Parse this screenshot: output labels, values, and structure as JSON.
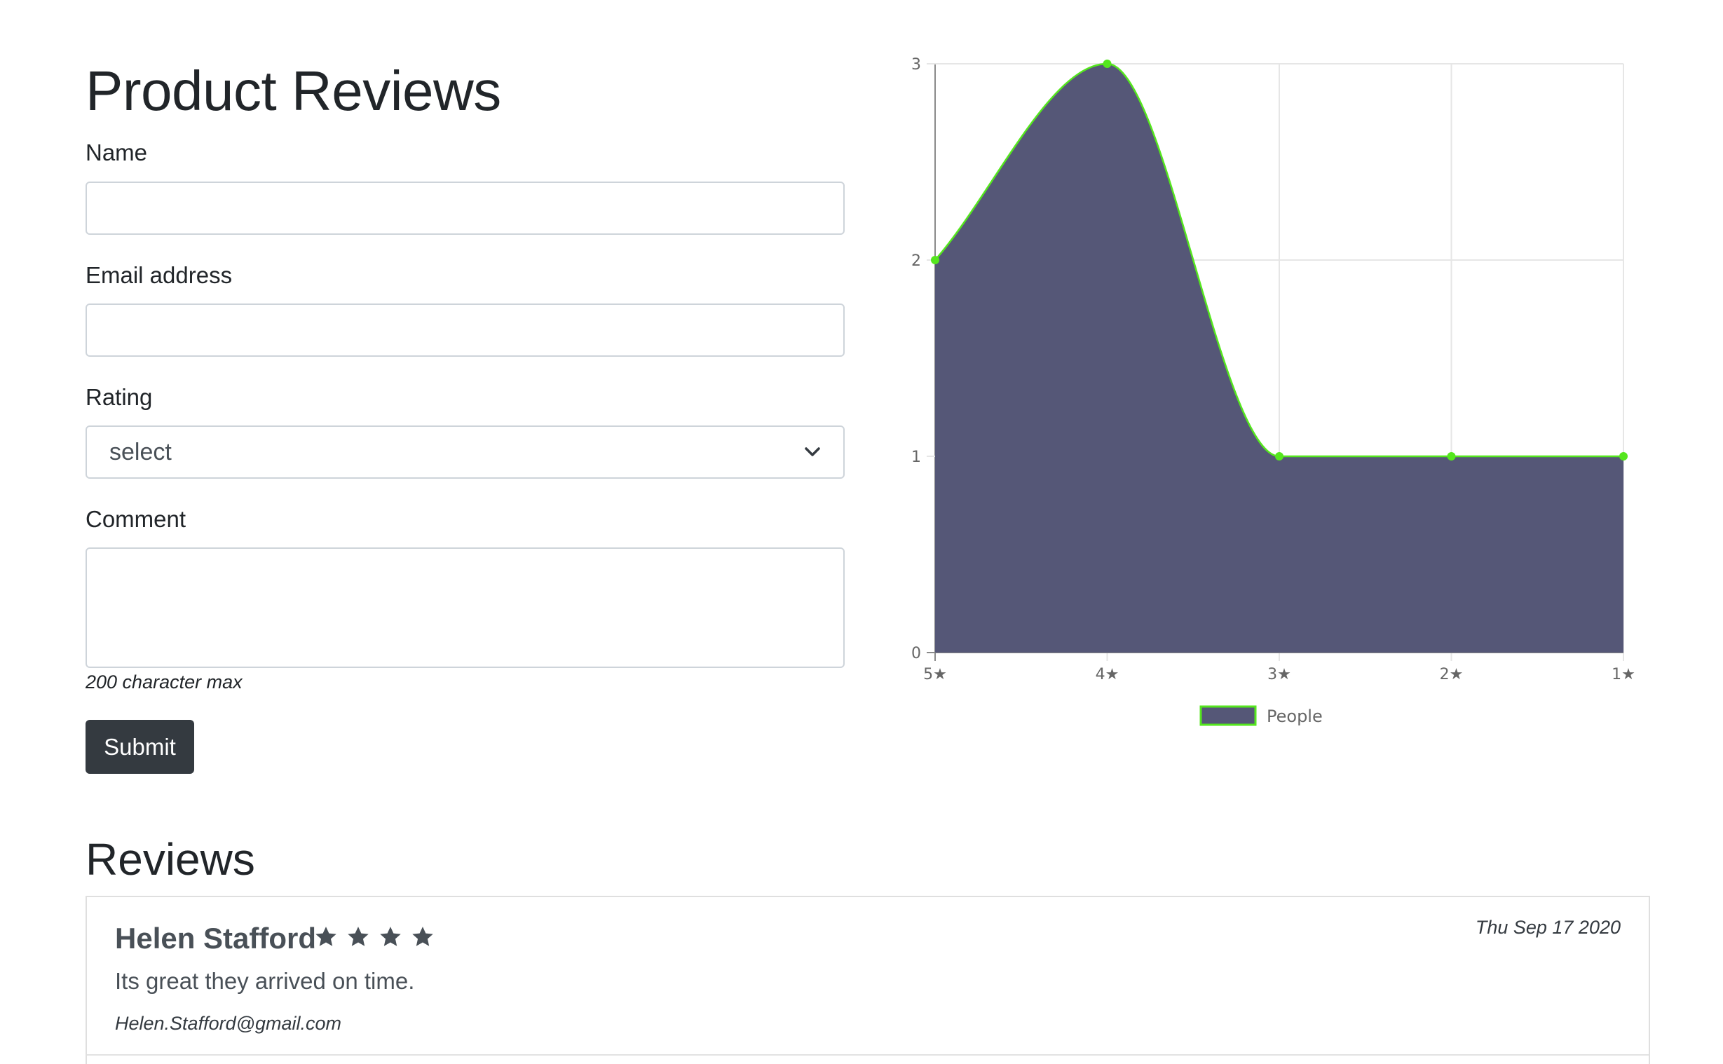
{
  "form": {
    "title": "Product Reviews",
    "name_label": "Name",
    "name_value": "",
    "email_label": "Email address",
    "email_value": "",
    "rating_label": "Rating",
    "rating_selected": "select",
    "comment_label": "Comment",
    "comment_value": "",
    "comment_help": "200 character max",
    "submit_label": "Submit"
  },
  "chart_data": {
    "type": "area",
    "categories": [
      "5★",
      "4★",
      "3★",
      "2★",
      "1★"
    ],
    "series": [
      {
        "name": "People",
        "values": [
          2,
          3,
          1,
          1,
          1
        ]
      }
    ],
    "ylim": [
      0,
      3
    ],
    "yticks": [
      0,
      1,
      2,
      3
    ],
    "grid": true,
    "legend": "bottom",
    "fill_color": "#555777",
    "line_color": "#55e61e"
  },
  "reviews": {
    "heading": "Reviews",
    "items": [
      {
        "name": "Helen Stafford",
        "stars": 4,
        "date": "Thu Sep 17 2020",
        "comment": "Its great they arrived on time.",
        "email": "Helen.Stafford@gmail.com"
      }
    ]
  },
  "icons": {
    "star": "star-icon",
    "dropdown": "chevron-down-icon"
  },
  "colors": {
    "button": "#343a40",
    "text": "#212529"
  }
}
